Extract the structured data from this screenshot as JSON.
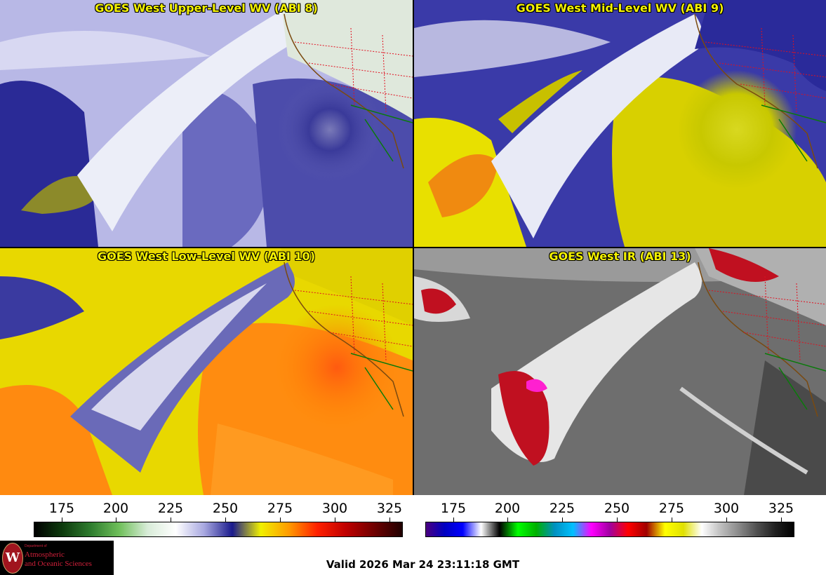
{
  "panels": [
    {
      "title": "GOES West Upper-Level WV (ABI 8)",
      "palette": "wv-upper"
    },
    {
      "title": "GOES West Mid-Level WV (ABI 9)",
      "palette": "wv-mid"
    },
    {
      "title": "GOES West Low-Level WV (ABI 10)",
      "palette": "wv-low"
    },
    {
      "title": "GOES West IR (ABI 13)",
      "palette": "ir"
    }
  ],
  "colorbars": {
    "wv": {
      "ticks": [
        "175",
        "200",
        "225",
        "250",
        "275",
        "300",
        "325"
      ],
      "colors": [
        "#000000",
        "#0d3b0d",
        "#2e7d2e",
        "#6fbf5a",
        "#d8ecd8",
        "#ffffff",
        "#a8a8e0",
        "#1a1a8c",
        "#f0f000",
        "#ff9a00",
        "#ff2000",
        "#c00000",
        "#700000",
        "#200000"
      ]
    },
    "ir": {
      "ticks": [
        "175",
        "200",
        "225",
        "250",
        "275",
        "300",
        "325"
      ],
      "colors": [
        "#4a0080",
        "#0000c0",
        "#0000ff",
        "#ffffff",
        "#000000",
        "#00ff00",
        "#00b000",
        "#0090c0",
        "#00c0ff",
        "#ff00ff",
        "#a000a0",
        "#ff0000",
        "#a00000",
        "#ffff00",
        "#e0e000",
        "#ffffff",
        "#c0c0c0",
        "#8a8a8a",
        "#505050",
        "#202020",
        "#000000"
      ]
    }
  },
  "logo": {
    "small": "Department of",
    "line1": "Atmospheric",
    "line2": "and Oceanic Sciences",
    "crest": "W"
  },
  "valid_text": "Valid 2026 Mar 24 23:11:18 GMT"
}
